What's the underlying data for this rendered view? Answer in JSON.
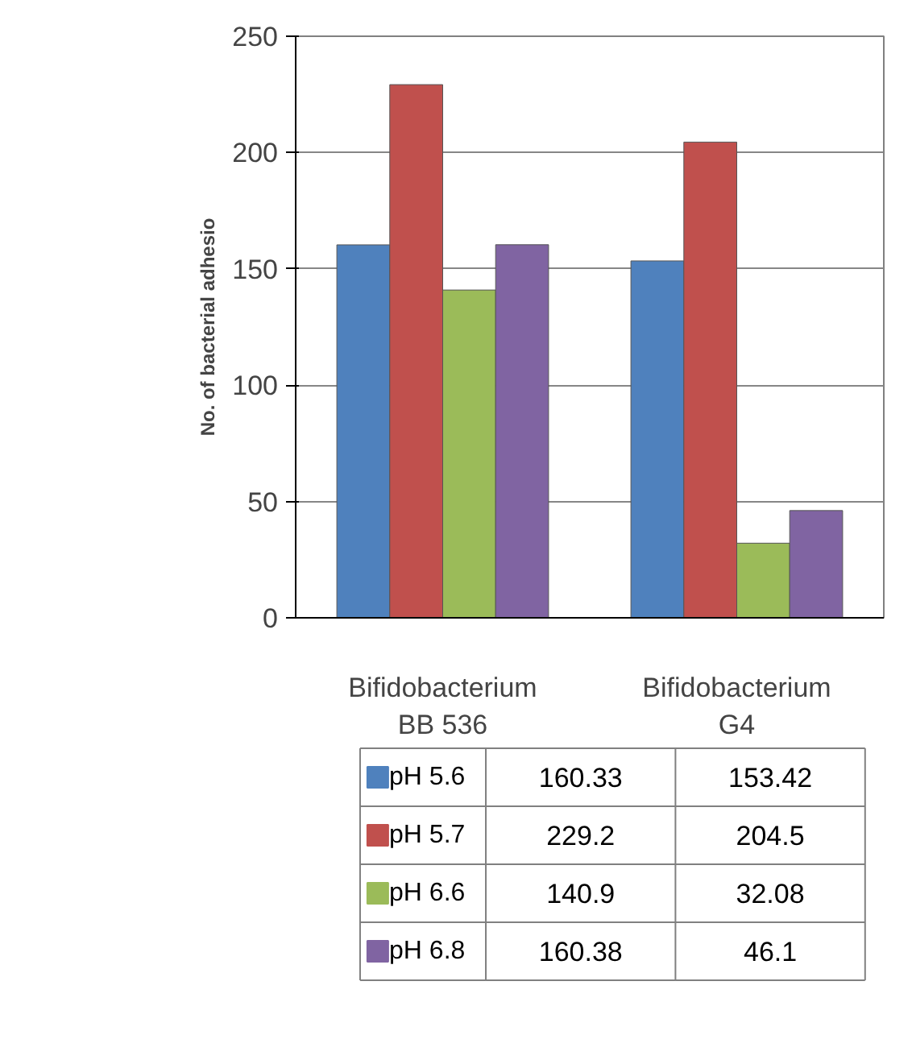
{
  "chart_data": {
    "type": "bar",
    "ylabel": "No. of bacterial adhesio",
    "categories": [
      "Bifidobacterium BB 536",
      "Bifidobacterium G4"
    ],
    "series": [
      {
        "name": "pH 5.6",
        "color": "#4f81bd",
        "values": [
          160.33,
          153.42
        ],
        "value_labels": [
          "160.33",
          "153.42"
        ]
      },
      {
        "name": "pH 5.7",
        "color": "#c0504d",
        "values": [
          229.2,
          204.5
        ],
        "value_labels": [
          "229.2",
          "204.5"
        ]
      },
      {
        "name": "pH 6.6",
        "color": "#9bbb59",
        "values": [
          140.9,
          32.08
        ],
        "value_labels": [
          "140.9",
          "32.08"
        ]
      },
      {
        "name": "pH 6.8",
        "color": "#8064a2",
        "values": [
          160.38,
          46.1
        ],
        "value_labels": [
          "160.38",
          "46.1"
        ]
      }
    ],
    "ylim": [
      0,
      250
    ],
    "yticks": [
      0,
      50,
      100,
      150,
      200,
      250
    ],
    "grid": "y",
    "legend": "bottom"
  }
}
